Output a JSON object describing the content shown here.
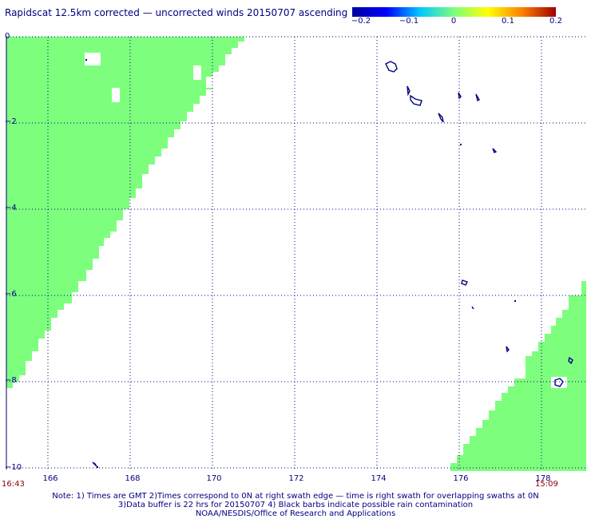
{
  "title": "Rapidscat 12.5km corrected — uncorrected winds 20150707 ascending",
  "colorbar": {
    "labels": [
      "−0.2",
      "−0.1",
      "0",
      "0.1",
      "0.2"
    ],
    "colors": [
      "#0000a0",
      "#0000ff",
      "#00c8ff",
      "#7dff7d",
      "#ffff00",
      "#ff8000",
      "#a00000"
    ]
  },
  "axes": {
    "y_ticks": [
      "0",
      "−2",
      "−4",
      "−6",
      "−8",
      "−10"
    ],
    "x_ticks": [
      "166",
      "168",
      "170",
      "172",
      "174",
      "176",
      "178"
    ],
    "y_range": [
      -10,
      0
    ],
    "x_range": [
      165,
      178.8
    ],
    "grid": true
  },
  "times": {
    "left": "16:43",
    "right": "15:09"
  },
  "notes": [
    "Note: 1) Times are GMT 2)Times correspond to 0N at right swath edge — time is right swath for overlapping swaths at 0N",
    "3)Data buffer is 22 hrs for 20150707 4) Black barbs indicate possible rain contamination",
    "NOAA/NESDIS/Office of Research and Applications"
  ],
  "swath_color": "#7dff7d",
  "island_color": "#000080"
}
